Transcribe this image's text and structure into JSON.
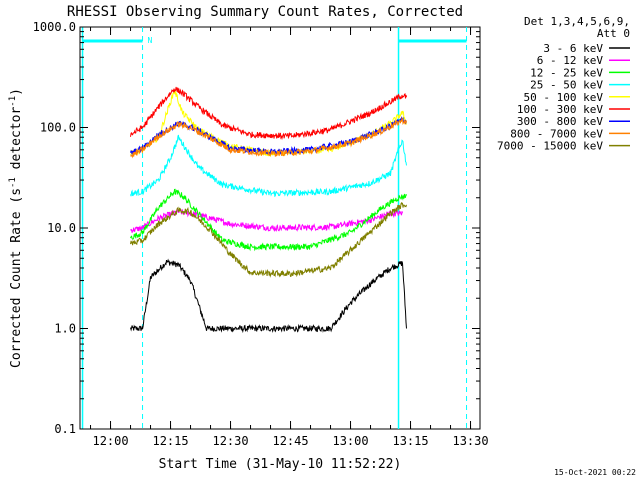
{
  "chart_data": {
    "type": "line",
    "title": "RHESSI Observing Summary Count Rates, Corrected",
    "xlabel": "Start Time (31-May-10 11:52:22)",
    "ylabel_main": "Corrected Count Rate (s",
    "ylabel_sup1": "-1",
    "ylabel_mid": " detector",
    "ylabel_sup2": "-1",
    "ylabel_end": ")",
    "footer": "15-Oct-2021 00:22",
    "y_scale": "log",
    "ylim": [
      0.1,
      1000
    ],
    "xlim": [
      "11:52:22",
      "13:32:22"
    ],
    "x_ticks": [
      "12:00",
      "12:15",
      "12:30",
      "12:45",
      "13:00",
      "13:15",
      "13:30"
    ],
    "y_ticks": [
      "0.1",
      "1.0",
      "10.0",
      "100.0",
      "1000.0"
    ],
    "legend_header": [
      "Det 1,3,4,5,6,9,",
      "Att 0"
    ],
    "legend_placement": "right",
    "night_markers": [
      "11:53:00",
      "13:12:00"
    ],
    "day_markers": [
      "12:08:00",
      "13:29:00"
    ],
    "night_band_label": "N",
    "series": [
      {
        "name": "3 - 6 keV",
        "color": "#000000",
        "points": [
          [
            "12:05:00",
            1.0
          ],
          [
            "12:08:00",
            1.0
          ],
          [
            "12:10:00",
            3.2
          ],
          [
            "12:14:00",
            4.6
          ],
          [
            "12:17:00",
            4.3
          ],
          [
            "12:20:00",
            3.0
          ],
          [
            "12:24:00",
            1.0
          ],
          [
            "12:28:00",
            1.0
          ],
          [
            "12:40:00",
            1.0
          ],
          [
            "12:55:00",
            1.0
          ],
          [
            "13:00:00",
            1.8
          ],
          [
            "13:05:00",
            2.8
          ],
          [
            "13:10:00",
            4.0
          ],
          [
            "13:13:00",
            4.5
          ],
          [
            "13:14:00",
            1.0
          ]
        ]
      },
      {
        "name": "6 - 12 keV",
        "color": "#ff00ff",
        "points": [
          [
            "12:05:00",
            9.5
          ],
          [
            "12:08:00",
            10.0
          ],
          [
            "12:12:00",
            12.5
          ],
          [
            "12:17:00",
            14.5
          ],
          [
            "12:20:00",
            14.0
          ],
          [
            "12:25:00",
            12.5
          ],
          [
            "12:30:00",
            11.0
          ],
          [
            "12:40:00",
            10.0
          ],
          [
            "12:55:00",
            10.2
          ],
          [
            "13:05:00",
            12.0
          ],
          [
            "13:10:00",
            14.0
          ],
          [
            "13:13:00",
            14.0
          ]
        ]
      },
      {
        "name": "12 - 25 keV",
        "color": "#00ff00",
        "points": [
          [
            "12:05:00",
            8.0
          ],
          [
            "12:08:00",
            9.0
          ],
          [
            "12:12:00",
            16.0
          ],
          [
            "12:16:00",
            23.0
          ],
          [
            "12:18:00",
            21.0
          ],
          [
            "12:22:00",
            14.0
          ],
          [
            "12:28:00",
            7.5
          ],
          [
            "12:35:00",
            6.5
          ],
          [
            "12:50:00",
            6.5
          ],
          [
            "13:00:00",
            9.0
          ],
          [
            "13:08:00",
            16.0
          ],
          [
            "13:12:00",
            20.0
          ],
          [
            "13:14:00",
            21.0
          ]
        ]
      },
      {
        "name": "25 - 50 keV",
        "color": "#00ffff",
        "points": [
          [
            "12:05:00",
            22.0
          ],
          [
            "12:08:00",
            23.0
          ],
          [
            "12:12:00",
            30.0
          ],
          [
            "12:15:00",
            50.0
          ],
          [
            "12:17:00",
            80.0
          ],
          [
            "12:19:00",
            60.0
          ],
          [
            "12:22:00",
            40.0
          ],
          [
            "12:28:00",
            27.0
          ],
          [
            "12:40:00",
            22.0
          ],
          [
            "12:55:00",
            23.0
          ],
          [
            "13:05:00",
            28.0
          ],
          [
            "13:10:00",
            35.0
          ],
          [
            "13:12:00",
            60.0
          ],
          [
            "13:13:00",
            75.0
          ],
          [
            "13:14:00",
            42.0
          ]
        ]
      },
      {
        "name": "50 - 100 keV",
        "color": "#ffff00",
        "points": [
          [
            "12:05:00",
            55.0
          ],
          [
            "12:08:00",
            60.0
          ],
          [
            "12:12:00",
            80.0
          ],
          [
            "12:15:00",
            180.0
          ],
          [
            "12:16:00",
            235.0
          ],
          [
            "12:18:00",
            140.0
          ],
          [
            "12:22:00",
            95.0
          ],
          [
            "12:30:00",
            65.0
          ],
          [
            "12:40:00",
            55.0
          ],
          [
            "12:55:00",
            60.0
          ],
          [
            "13:05:00",
            85.0
          ],
          [
            "13:10:00",
            110.0
          ],
          [
            "13:13:00",
            140.0
          ],
          [
            "13:14:00",
            110.0
          ]
        ]
      },
      {
        "name": "100 - 300 keV",
        "color": "#ff0000",
        "points": [
          [
            "12:05:00",
            85.0
          ],
          [
            "12:08:00",
            100.0
          ],
          [
            "12:12:00",
            160.0
          ],
          [
            "12:16:00",
            245.0
          ],
          [
            "12:18:00",
            220.0
          ],
          [
            "12:22:00",
            160.0
          ],
          [
            "12:28:00",
            105.0
          ],
          [
            "12:35:00",
            85.0
          ],
          [
            "12:45:00",
            82.0
          ],
          [
            "12:55:00",
            95.0
          ],
          [
            "13:05:00",
            140.0
          ],
          [
            "13:10:00",
            180.0
          ],
          [
            "13:13:00",
            210.0
          ],
          [
            "13:14:00",
            200.0
          ]
        ]
      },
      {
        "name": "300 - 800 keV",
        "color": "#0000ff",
        "points": [
          [
            "12:05:00",
            55.0
          ],
          [
            "12:08:00",
            62.0
          ],
          [
            "12:12:00",
            85.0
          ],
          [
            "12:17:00",
            110.0
          ],
          [
            "12:20:00",
            102.0
          ],
          [
            "12:25:00",
            80.0
          ],
          [
            "12:30:00",
            62.0
          ],
          [
            "12:40:00",
            57.0
          ],
          [
            "12:50:00",
            60.0
          ],
          [
            "13:00:00",
            72.0
          ],
          [
            "13:08:00",
            95.0
          ],
          [
            "13:13:00",
            120.0
          ],
          [
            "13:14:00",
            115.0
          ]
        ]
      },
      {
        "name": "800 - 7000 keV",
        "color": "#ff8000",
        "points": [
          [
            "12:05:00",
            52.0
          ],
          [
            "12:08:00",
            60.0
          ],
          [
            "12:12:00",
            82.0
          ],
          [
            "12:17:00",
            108.0
          ],
          [
            "12:20:00",
            100.0
          ],
          [
            "12:25:00",
            78.0
          ],
          [
            "12:30:00",
            60.0
          ],
          [
            "12:40:00",
            55.0
          ],
          [
            "12:50:00",
            58.0
          ],
          [
            "13:00:00",
            70.0
          ],
          [
            "13:08:00",
            93.0
          ],
          [
            "13:13:00",
            118.0
          ],
          [
            "13:14:00",
            112.0
          ]
        ]
      },
      {
        "name": "7000 - 15000 keV",
        "color": "#808000",
        "points": [
          [
            "12:05:00",
            7.0
          ],
          [
            "12:08:00",
            7.5
          ],
          [
            "12:12:00",
            11.0
          ],
          [
            "12:17:00",
            15.0
          ],
          [
            "12:20:00",
            14.5
          ],
          [
            "12:25:00",
            9.5
          ],
          [
            "12:30:00",
            5.5
          ],
          [
            "12:35:00",
            3.6
          ],
          [
            "12:45:00",
            3.5
          ],
          [
            "12:55:00",
            4.0
          ],
          [
            "13:00:00",
            6.0
          ],
          [
            "13:06:00",
            10.0
          ],
          [
            "13:10:00",
            14.0
          ],
          [
            "13:13:00",
            17.0
          ],
          [
            "13:14:00",
            17.0
          ]
        ]
      }
    ]
  }
}
